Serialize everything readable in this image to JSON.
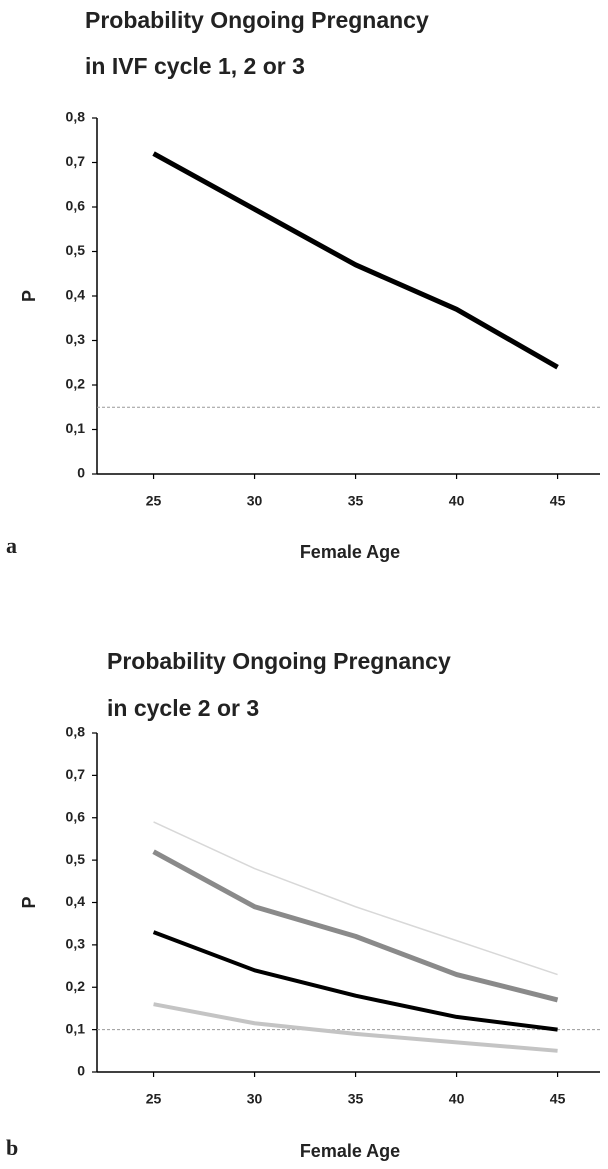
{
  "chart_data": [
    {
      "type": "line",
      "panel_label": "a",
      "title": [
        "Probability Ongoing Pregnancy",
        "in IVF cycle 1, 2 or 3"
      ],
      "x_label": "Female Age",
      "y_label": "P",
      "x": [
        25,
        30,
        35,
        40,
        45
      ],
      "series": [
        {
          "color": "#000000",
          "width": 5,
          "values": [
            0.72,
            0.595,
            0.47,
            0.37,
            0.24
          ]
        }
      ],
      "reference_line": {
        "value": 0.15,
        "color": "#999999"
      },
      "xlim": [
        22.2,
        47.1
      ],
      "xticks": [
        25,
        30,
        35,
        40,
        45
      ],
      "ylim": [
        0,
        0.8
      ],
      "yticks": [
        0,
        {
          "value": 0.1,
          "label": "0,1"
        },
        {
          "value": 0.2,
          "label": "0,2"
        },
        {
          "value": 0.3,
          "label": "0,3"
        },
        {
          "value": 0.4,
          "label": "0,4"
        },
        {
          "value": 0.5,
          "label": "0,5"
        },
        {
          "value": 0.6,
          "label": "0,6"
        },
        {
          "value": 0.7,
          "label": "0,7"
        },
        {
          "value": 0.8,
          "label": "0,8"
        }
      ]
    },
    {
      "type": "line",
      "panel_label": "b",
      "title": [
        "Probability Ongoing Pregnancy",
        "in cycle 2 or 3"
      ],
      "x_label": "Female Age",
      "y_label": "P",
      "x": [
        25,
        30,
        35,
        40,
        45
      ],
      "series": [
        {
          "color": "#d8d8d8",
          "width": 1.5,
          "values": [
            0.59,
            0.48,
            0.39,
            0.31,
            0.23
          ]
        },
        {
          "color": "#8a8a8a",
          "width": 5,
          "values": [
            0.52,
            0.39,
            0.32,
            0.23,
            0.17
          ]
        },
        {
          "color": "#000000",
          "width": 4,
          "values": [
            0.33,
            0.24,
            0.18,
            0.13,
            0.1
          ]
        },
        {
          "color": "#c4c4c4",
          "width": 4,
          "values": [
            0.16,
            0.115,
            0.09,
            0.07,
            0.05
          ]
        }
      ],
      "reference_line": {
        "value": 0.1,
        "color": "#999999"
      },
      "xlim": [
        22.2,
        47.1
      ],
      "xticks": [
        25,
        30,
        35,
        40,
        45
      ],
      "ylim": [
        0,
        0.8
      ],
      "yticks": [
        0,
        {
          "value": 0.1,
          "label": "0,1"
        },
        {
          "value": 0.2,
          "label": "0,2"
        },
        {
          "value": 0.3,
          "label": "0,3"
        },
        {
          "value": 0.4,
          "label": "0,4"
        },
        {
          "value": 0.5,
          "label": "0,5"
        },
        {
          "value": 0.6,
          "label": "0,6"
        },
        {
          "value": 0.7,
          "label": "0,7"
        },
        {
          "value": 0.8,
          "label": "0,8"
        }
      ]
    }
  ]
}
